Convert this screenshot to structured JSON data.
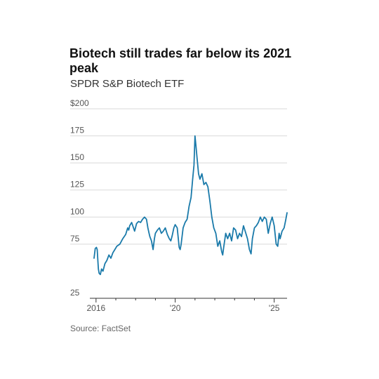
{
  "title": "Biotech still trades far below its 2021 peak",
  "subtitle": "SPDR S&P Biotech ETF",
  "source": "Source: FactSet",
  "colors": {
    "line": "#1a7aaa",
    "grid": "#d9d9d9",
    "axis": "#333333",
    "text": "#555555"
  },
  "chart_data": {
    "type": "line",
    "title": "Biotech still trades far below its 2021 peak",
    "subtitle": "SPDR S&P Biotech ETF",
    "xlabel": "",
    "ylabel": "",
    "xlim": [
      2015.9,
      2025.65
    ],
    "ylim": [
      25,
      200
    ],
    "y_ticks": [
      {
        "value": 200,
        "label": "$200"
      },
      {
        "value": 175,
        "label": "175"
      },
      {
        "value": 150,
        "label": "150"
      },
      {
        "value": 125,
        "label": "125"
      },
      {
        "value": 100,
        "label": "100"
      },
      {
        "value": 75,
        "label": "75"
      },
      {
        "value": 25,
        "label": "25"
      }
    ],
    "x_ticks": [
      {
        "value": 2016,
        "label": "2016",
        "major": true
      },
      {
        "value": 2017,
        "label": "",
        "major": false
      },
      {
        "value": 2018,
        "label": "",
        "major": false
      },
      {
        "value": 2019,
        "label": "",
        "major": false
      },
      {
        "value": 2020,
        "label": "'20",
        "major": true
      },
      {
        "value": 2021,
        "label": "",
        "major": false
      },
      {
        "value": 2022,
        "label": "",
        "major": false
      },
      {
        "value": 2023,
        "label": "",
        "major": false
      },
      {
        "value": 2024,
        "label": "",
        "major": false
      },
      {
        "value": 2025,
        "label": "'25",
        "major": true
      }
    ],
    "grid": "horizontal",
    "series": [
      {
        "x": [
          2015.9,
          2015.96,
          2016.02,
          2016.06,
          2016.1,
          2016.12,
          2016.16,
          2016.22,
          2016.28,
          2016.35,
          2016.45,
          2016.55,
          2016.65,
          2016.75,
          2016.85,
          2016.95,
          2017.05,
          2017.2,
          2017.35,
          2017.5,
          2017.6,
          2017.65,
          2017.7,
          2017.8,
          2017.95,
          2018.05,
          2018.15,
          2018.25,
          2018.35,
          2018.45,
          2018.55,
          2018.62,
          2018.68,
          2018.72,
          2018.8,
          2018.88,
          2018.95,
          2019.0,
          2019.1,
          2019.2,
          2019.3,
          2019.4,
          2019.5,
          2019.6,
          2019.7,
          2019.78,
          2019.85,
          2019.93,
          2020.0,
          2020.1,
          2020.2,
          2020.25,
          2020.3,
          2020.4,
          2020.5,
          2020.6,
          2020.7,
          2020.8,
          2020.88,
          2020.95,
          2021.0,
          2021.05,
          2021.1,
          2021.18,
          2021.25,
          2021.35,
          2021.45,
          2021.55,
          2021.65,
          2021.75,
          2021.85,
          2021.95,
          2022.05,
          2022.15,
          2022.25,
          2022.35,
          2022.4,
          2022.45,
          2022.55,
          2022.65,
          2022.75,
          2022.85,
          2022.95,
          2023.05,
          2023.15,
          2023.25,
          2023.35,
          2023.45,
          2023.55,
          2023.65,
          2023.75,
          2023.83,
          2023.9,
          2024.0,
          2024.1,
          2024.2,
          2024.3,
          2024.4,
          2024.5,
          2024.6,
          2024.7,
          2024.8,
          2024.9,
          2025.0,
          2025.1,
          2025.18,
          2025.25,
          2025.3,
          2025.4,
          2025.5,
          2025.58,
          2025.65
        ],
        "values": [
          62,
          71,
          72,
          70,
          58,
          52,
          48,
          47,
          52,
          50,
          57,
          60,
          65,
          62,
          67,
          70,
          73,
          75,
          80,
          84,
          90,
          88,
          92,
          95,
          87,
          94,
          96,
          95,
          98,
          100,
          98,
          90,
          85,
          82,
          78,
          70,
          80,
          85,
          88,
          90,
          85,
          87,
          90,
          84,
          80,
          78,
          83,
          90,
          93,
          90,
          72,
          70,
          75,
          90,
          95,
          98,
          110,
          118,
          135,
          148,
          175,
          165,
          155,
          140,
          135,
          140,
          130,
          132,
          128,
          115,
          100,
          90,
          85,
          73,
          78,
          68,
          65,
          72,
          85,
          80,
          85,
          78,
          90,
          88,
          80,
          85,
          82,
          92,
          86,
          80,
          70,
          66,
          80,
          90,
          92,
          95,
          100,
          96,
          100,
          98,
          85,
          94,
          100,
          92,
          75,
          73,
          85,
          80,
          87,
          90,
          97,
          104
        ]
      }
    ]
  }
}
